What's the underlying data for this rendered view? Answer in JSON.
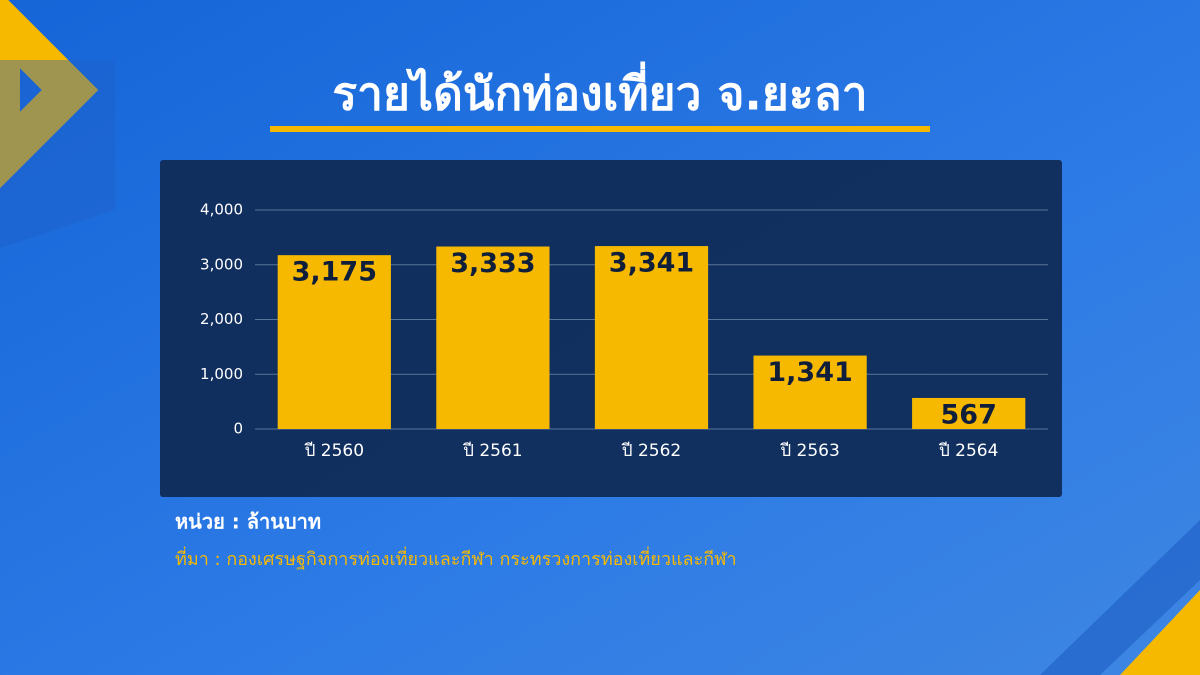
{
  "chart_data": {
    "type": "bar",
    "title": "รายได้นักท่องเที่ยว จ.ยะลา",
    "categories": [
      "ปี 2560",
      "ปี 2561",
      "ปี 2562",
      "ปี 2563",
      "ปี 2564"
    ],
    "values": [
      3175,
      3333,
      3341,
      1341,
      567
    ],
    "value_labels": [
      "3,175",
      "3,333",
      "3,341",
      "1,341",
      "567"
    ],
    "color": "#f7b900",
    "ylim": [
      0,
      4000
    ],
    "yticks": [
      0,
      {
        "value": 1000,
        "label": "1,000"
      },
      {
        "value": 2000,
        "label": "2,000"
      },
      {
        "value": 3000,
        "label": "3,000"
      },
      {
        "value": 4000,
        "label": "4,000"
      }
    ],
    "grid": true,
    "unit_note": "หน่วย : ล้านบาท",
    "source": "ที่มา : กองเศรษฐกิจการท่องเที่ยวและกีฬา กระทรวงการท่องเที่ยวและกีฬา"
  }
}
